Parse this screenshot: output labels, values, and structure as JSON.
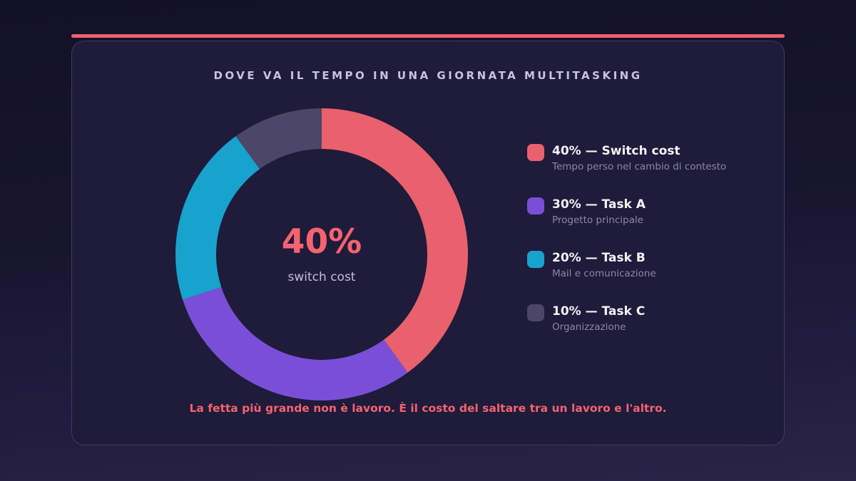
{
  "title": "DOVE VA IL TEMPO IN UNA GIORNATA MULTITASKING",
  "caption": "La fetta più grande non è lavoro. È il costo del saltare tra un lavoro e l'altro.",
  "chart_data": {
    "type": "pie",
    "donut": true,
    "title": "DOVE VA IL TEMPO IN UNA GIORNATA MULTITASKING",
    "start_angle_deg": 0,
    "direction": "clockwise",
    "segments": [
      {
        "label": "Switch cost",
        "value": 40,
        "color": "#e9616d",
        "description": "Tempo perso nel cambio di contesto"
      },
      {
        "label": "Task A",
        "value": 30,
        "color": "#7a4fd8",
        "description": "Progetto principale"
      },
      {
        "label": "Task B",
        "value": 20,
        "color": "#17a3ce",
        "description": "Mail e comunicazione"
      },
      {
        "label": "Task C",
        "value": 10,
        "color": "#4c4768",
        "description": "Organizzazione"
      }
    ],
    "center_label": {
      "value": "40%",
      "caption": "switch cost"
    },
    "legend_position": "right"
  },
  "legend": {
    "items": [
      {
        "title": "40% — Switch cost",
        "subtitle": "Tempo perso nel cambio di contesto",
        "color": "#e9616d"
      },
      {
        "title": "30% — Task A",
        "subtitle": "Progetto principale",
        "color": "#7a4fd8"
      },
      {
        "title": "20% — Task B",
        "subtitle": "Mail e comunicazione",
        "color": "#17a3ce"
      },
      {
        "title": "10% — Task C",
        "subtitle": "Organizzazione",
        "color": "#4c4768"
      }
    ]
  },
  "colors": {
    "accent": "#ee616d",
    "page_bg_top": "#131126",
    "page_bg_bottom": "#2a2449",
    "card_bg": "#1f1b3a",
    "title_text": "#c9c4dd",
    "legend_title_text": "#f4f2f9",
    "legend_subtitle_text": "#8d87a4",
    "center_value_text": "#f4636f",
    "center_caption_text": "#c3bdd6"
  }
}
